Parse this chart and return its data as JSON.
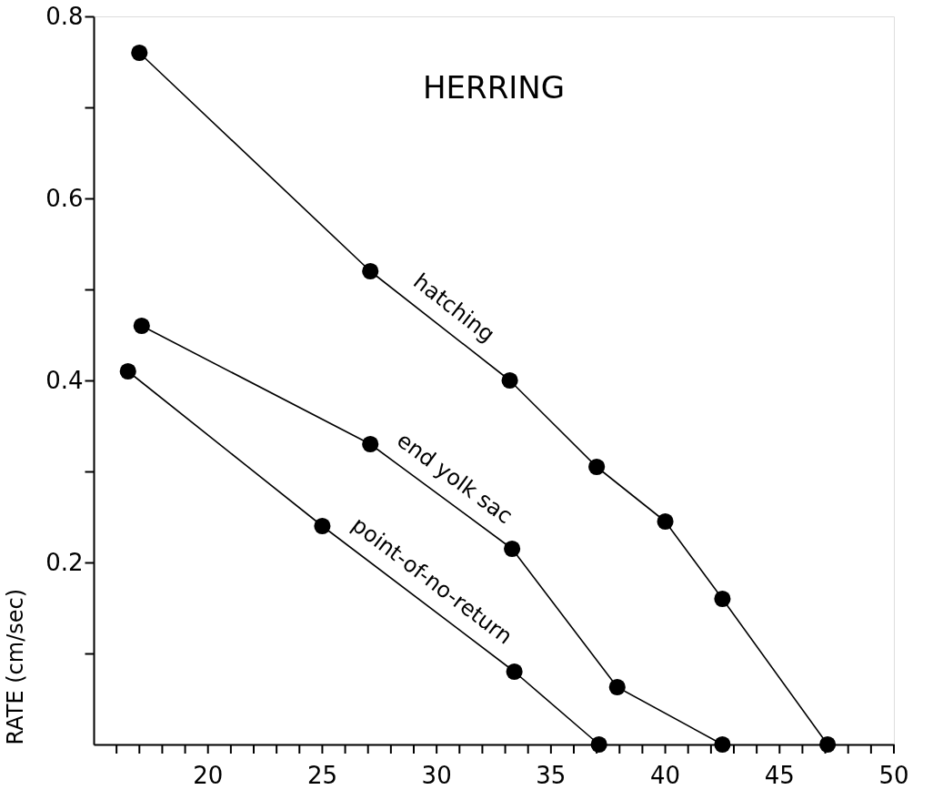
{
  "chart_data": {
    "type": "line",
    "title": "HERRING",
    "ylabel": "RATE (cm/sec)",
    "xlim": [
      15,
      50
    ],
    "xticks": [
      {
        "value": 16,
        "label": null
      },
      {
        "value": 17,
        "label": null
      },
      {
        "value": 18,
        "label": null
      },
      {
        "value": 19,
        "label": null
      },
      20,
      {
        "value": 21,
        "label": null
      },
      {
        "value": 22,
        "label": null
      },
      {
        "value": 23,
        "label": null
      },
      {
        "value": 24,
        "label": null
      },
      25,
      {
        "value": 26,
        "label": null
      },
      {
        "value": 27,
        "label": null
      },
      {
        "value": 28,
        "label": null
      },
      {
        "value": 29,
        "label": null
      },
      30,
      {
        "value": 31,
        "label": null
      },
      {
        "value": 32,
        "label": null
      },
      {
        "value": 33,
        "label": null
      },
      {
        "value": 34,
        "label": null
      },
      35,
      {
        "value": 36,
        "label": null
      },
      {
        "value": 37,
        "label": null
      },
      {
        "value": 38,
        "label": null
      },
      {
        "value": 39,
        "label": null
      },
      40,
      {
        "value": 41,
        "label": null
      },
      {
        "value": 42,
        "label": null
      },
      {
        "value": 43,
        "label": null
      },
      {
        "value": 44,
        "label": null
      },
      45,
      {
        "value": 46,
        "label": null
      },
      {
        "value": 47,
        "label": null
      },
      {
        "value": 48,
        "label": null
      },
      {
        "value": 49,
        "label": null
      },
      50
    ],
    "ylim": [
      0,
      0.8
    ],
    "yticks": [
      {
        "value": 0.1,
        "label": null
      },
      0.2,
      {
        "value": 0.3,
        "label": null
      },
      0.4,
      {
        "value": 0.5,
        "label": null
      },
      0.6,
      {
        "value": 0.7,
        "label": null
      },
      0.8
    ],
    "grid": false,
    "legend": false,
    "marker": "circle",
    "line_style": "solid",
    "series": [
      {
        "name": "hatching",
        "color": "#000000",
        "x": [
          17.0,
          27.1,
          33.2,
          37.0,
          40.0,
          42.5,
          47.1
        ],
        "values": [
          0.76,
          0.52,
          0.4,
          0.305,
          0.245,
          0.16,
          0.0
        ]
      },
      {
        "name": "end yolk sac",
        "color": "#000000",
        "x": [
          17.1,
          27.1,
          33.3,
          37.9,
          42.5
        ],
        "values": [
          0.46,
          0.33,
          0.215,
          0.063,
          0.0
        ]
      },
      {
        "name": "point-of-no-return",
        "color": "#000000",
        "x": [
          16.5,
          25.0,
          33.4,
          37.1
        ],
        "values": [
          0.41,
          0.24,
          0.08,
          0.0
        ]
      }
    ]
  }
}
